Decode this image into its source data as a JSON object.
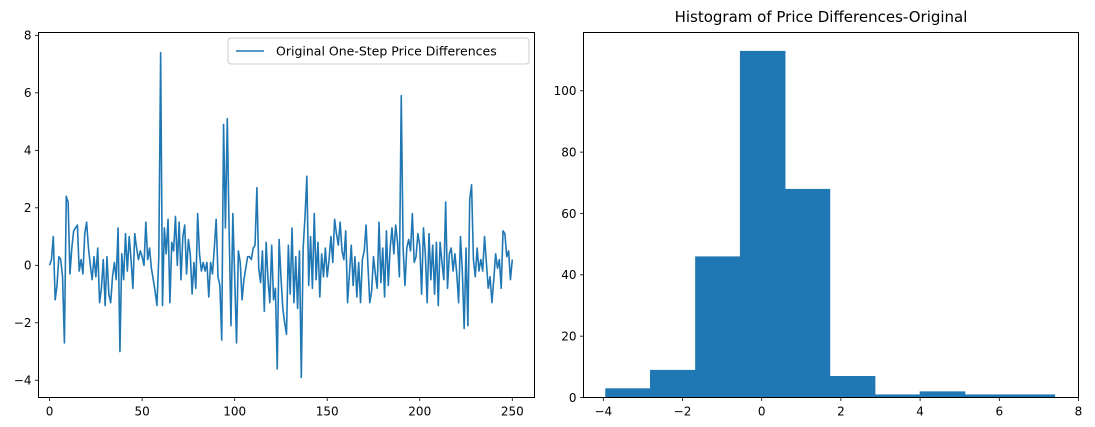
{
  "chart_data": [
    {
      "type": "line",
      "title": "",
      "xlabel": "",
      "ylabel": "",
      "xlim": [
        -6,
        262
      ],
      "ylim": [
        -4.6,
        8.1
      ],
      "xticks": [
        0,
        50,
        100,
        150,
        200,
        250
      ],
      "yticks": [
        -4,
        -2,
        0,
        2,
        4,
        6,
        8
      ],
      "legend": {
        "placement": "top-right"
      },
      "grid": false,
      "color": "#1f77b4",
      "series": [
        {
          "name": "Original One-Step Price Differences",
          "points": [
            [
              0,
              0
            ],
            [
              1,
              0.2
            ],
            [
              2,
              1.0
            ],
            [
              3,
              -1.2
            ],
            [
              4,
              -0.7
            ],
            [
              5,
              0.3
            ],
            [
              6,
              0.2
            ],
            [
              7,
              -0.4
            ],
            [
              8,
              -2.7
            ],
            [
              9,
              2.4
            ],
            [
              10,
              2.2
            ],
            [
              11,
              -0.3
            ],
            [
              12,
              0.6
            ],
            [
              13,
              1.2
            ],
            [
              14,
              1.3
            ],
            [
              15,
              1.4
            ],
            [
              16,
              -0.2
            ],
            [
              17,
              0.2
            ],
            [
              18,
              -0.3
            ],
            [
              19,
              1.1
            ],
            [
              20,
              1.5
            ],
            [
              21,
              0.6
            ],
            [
              22,
              0.0
            ],
            [
              23,
              -0.5
            ],
            [
              24,
              0.3
            ],
            [
              25,
              -0.4
            ],
            [
              26,
              0.6
            ],
            [
              27,
              -1.3
            ],
            [
              28,
              -0.8
            ],
            [
              29,
              0.2
            ],
            [
              30,
              -1.4
            ],
            [
              31,
              0.3
            ],
            [
              32,
              -1.0
            ],
            [
              33,
              -1.3
            ],
            [
              34,
              -0.4
            ],
            [
              35,
              0.1
            ],
            [
              36,
              -0.5
            ],
            [
              37,
              1.3
            ],
            [
              38,
              -3.0
            ],
            [
              39,
              0.4
            ],
            [
              40,
              -0.5
            ],
            [
              41,
              1.1
            ],
            [
              42,
              -0.2
            ],
            [
              43,
              1.0
            ],
            [
              44,
              0.2
            ],
            [
              45,
              -0.8
            ],
            [
              46,
              1.1
            ],
            [
              47,
              0.6
            ],
            [
              48,
              0.2
            ],
            [
              49,
              0.5
            ],
            [
              50,
              0.3
            ],
            [
              51,
              0.0
            ],
            [
              52,
              1.5
            ],
            [
              53,
              0.2
            ],
            [
              54,
              0.6
            ],
            [
              55,
              -0.1
            ],
            [
              56,
              -0.5
            ],
            [
              57,
              -0.9
            ],
            [
              58,
              -1.4
            ],
            [
              59,
              0.3
            ],
            [
              60,
              7.4
            ],
            [
              61,
              -1.4
            ],
            [
              62,
              1.3
            ],
            [
              63,
              0.4
            ],
            [
              64,
              1.6
            ],
            [
              65,
              -1.3
            ],
            [
              66,
              0.8
            ],
            [
              67,
              0.5
            ],
            [
              68,
              1.7
            ],
            [
              69,
              0.0
            ],
            [
              70,
              1.5
            ],
            [
              71,
              -0.5
            ],
            [
              72,
              1.0
            ],
            [
              73,
              1.4
            ],
            [
              74,
              -0.3
            ],
            [
              75,
              0.9
            ],
            [
              76,
              0.4
            ],
            [
              77,
              -1.0
            ],
            [
              78,
              0.1
            ],
            [
              79,
              -0.8
            ],
            [
              80,
              1.8
            ],
            [
              81,
              0.4
            ],
            [
              82,
              -0.2
            ],
            [
              83,
              0.1
            ],
            [
              84,
              -0.2
            ],
            [
              85,
              0.1
            ],
            [
              86,
              -1.1
            ],
            [
              87,
              0.1
            ],
            [
              88,
              -0.3
            ],
            [
              89,
              0.6
            ],
            [
              90,
              1.6
            ],
            [
              91,
              -0.4
            ],
            [
              92,
              -0.7
            ],
            [
              93,
              -2.6
            ],
            [
              94,
              4.9
            ],
            [
              95,
              1.3
            ],
            [
              96,
              5.1
            ],
            [
              97,
              1.2
            ],
            [
              98,
              -2.1
            ],
            [
              99,
              1.8
            ],
            [
              100,
              -0.4
            ],
            [
              101,
              -2.7
            ],
            [
              102,
              0.5
            ],
            [
              103,
              0.1
            ],
            [
              104,
              -1.2
            ],
            [
              105,
              -0.5
            ],
            [
              106,
              -0.1
            ],
            [
              107,
              0.3
            ],
            [
              108,
              0.3
            ],
            [
              109,
              0.2
            ],
            [
              110,
              0.6
            ],
            [
              111,
              0.7
            ],
            [
              112,
              2.7
            ],
            [
              113,
              -0.1
            ],
            [
              114,
              -0.6
            ],
            [
              115,
              0.5
            ],
            [
              116,
              -1.6
            ],
            [
              117,
              0.8
            ],
            [
              118,
              -0.5
            ],
            [
              119,
              -1.3
            ],
            [
              120,
              0.7
            ],
            [
              121,
              -1.2
            ],
            [
              122,
              -0.8
            ],
            [
              123,
              -3.6
            ],
            [
              124,
              0.9
            ],
            [
              125,
              -0.4
            ],
            [
              126,
              -1.5
            ],
            [
              127,
              -2.0
            ],
            [
              128,
              -2.4
            ],
            [
              129,
              0.7
            ],
            [
              130,
              -1.0
            ],
            [
              131,
              1.3
            ],
            [
              132,
              -1.3
            ],
            [
              133,
              0.3
            ],
            [
              134,
              -1.5
            ],
            [
              135,
              0.5
            ],
            [
              136,
              -3.9
            ],
            [
              137,
              0.6
            ],
            [
              138,
              1.7
            ],
            [
              139,
              3.1
            ],
            [
              140,
              -0.7
            ],
            [
              141,
              1.0
            ],
            [
              142,
              -0.8
            ],
            [
              143,
              1.8
            ],
            [
              144,
              -0.5
            ],
            [
              145,
              0.8
            ],
            [
              146,
              -1.1
            ],
            [
              147,
              0.4
            ],
            [
              148,
              -0.4
            ],
            [
              149,
              0.6
            ],
            [
              150,
              -0.4
            ],
            [
              151,
              0.2
            ],
            [
              152,
              1.0
            ],
            [
              153,
              0.1
            ],
            [
              154,
              1.6
            ],
            [
              155,
              1.1
            ],
            [
              156,
              0.7
            ],
            [
              157,
              1.5
            ],
            [
              158,
              0.5
            ],
            [
              159,
              0.2
            ],
            [
              160,
              1.2
            ],
            [
              161,
              -1.3
            ],
            [
              162,
              -0.3
            ],
            [
              163,
              0.7
            ],
            [
              164,
              -0.7
            ],
            [
              165,
              0.3
            ],
            [
              166,
              -1.1
            ],
            [
              167,
              0.1
            ],
            [
              168,
              -1.3
            ],
            [
              169,
              0.2
            ],
            [
              170,
              0.5
            ],
            [
              171,
              1.4
            ],
            [
              172,
              0.0
            ],
            [
              173,
              -1.3
            ],
            [
              174,
              -0.9
            ],
            [
              175,
              0.3
            ],
            [
              176,
              -0.3
            ],
            [
              177,
              -0.8
            ],
            [
              178,
              1.5
            ],
            [
              179,
              -0.6
            ],
            [
              180,
              0.6
            ],
            [
              181,
              -1.1
            ],
            [
              182,
              1.2
            ],
            [
              183,
              -0.7
            ],
            [
              184,
              0.6
            ],
            [
              185,
              1.3
            ],
            [
              186,
              0.4
            ],
            [
              187,
              1.4
            ],
            [
              188,
              0.8
            ],
            [
              189,
              -0.4
            ],
            [
              190,
              5.9
            ],
            [
              191,
              0.6
            ],
            [
              192,
              -0.7
            ],
            [
              193,
              0.6
            ],
            [
              194,
              0.9
            ],
            [
              195,
              0.5
            ],
            [
              196,
              1.8
            ],
            [
              197,
              0.1
            ],
            [
              198,
              0.3
            ],
            [
              199,
              1.1
            ],
            [
              200,
              0.7
            ],
            [
              201,
              -1.0
            ],
            [
              202,
              1.3
            ],
            [
              203,
              0.4
            ],
            [
              204,
              -1.3
            ],
            [
              205,
              1.1
            ],
            [
              206,
              -0.5
            ],
            [
              207,
              0.7
            ],
            [
              208,
              -1.0
            ],
            [
              209,
              0.8
            ],
            [
              210,
              -1.4
            ],
            [
              211,
              0.8
            ],
            [
              212,
              0.1
            ],
            [
              213,
              -0.5
            ],
            [
              214,
              2.2
            ],
            [
              215,
              -0.8
            ],
            [
              216,
              0.4
            ],
            [
              217,
              0.6
            ],
            [
              218,
              -0.2
            ],
            [
              219,
              0.4
            ],
            [
              220,
              -0.3
            ],
            [
              221,
              -1.3
            ],
            [
              222,
              1.0
            ],
            [
              223,
              -0.2
            ],
            [
              224,
              -2.2
            ],
            [
              225,
              0.6
            ],
            [
              226,
              -2.1
            ],
            [
              227,
              2.3
            ],
            [
              228,
              2.8
            ],
            [
              229,
              0.2
            ],
            [
              230,
              -0.4
            ],
            [
              231,
              0.6
            ],
            [
              232,
              -0.2
            ],
            [
              233,
              0.2
            ],
            [
              234,
              -0.2
            ],
            [
              235,
              1.0
            ],
            [
              236,
              0.1
            ],
            [
              237,
              -0.8
            ],
            [
              238,
              -0.4
            ],
            [
              239,
              -1.3
            ],
            [
              240,
              -0.5
            ],
            [
              241,
              0.4
            ],
            [
              242,
              -0.1
            ],
            [
              243,
              0.2
            ],
            [
              244,
              -0.8
            ],
            [
              245,
              1.2
            ],
            [
              246,
              1.1
            ],
            [
              247,
              0.3
            ],
            [
              248,
              0.5
            ],
            [
              249,
              -0.5
            ],
            [
              250,
              0.2
            ]
          ]
        }
      ]
    },
    {
      "type": "histogram",
      "title": "Histogram of Price Differences-Original",
      "xlabel": "",
      "ylabel": "",
      "xlim": [
        -4.5,
        8.0
      ],
      "ylim": [
        0,
        119
      ],
      "xticks": [
        -4,
        -2,
        0,
        2,
        4,
        6,
        8
      ],
      "yticks": [
        0,
        20,
        40,
        60,
        80,
        100
      ],
      "grid": false,
      "color": "#1f77b4",
      "bins": [
        {
          "start": -3.95,
          "end": -2.82,
          "count": 3
        },
        {
          "start": -2.82,
          "end": -1.68,
          "count": 9
        },
        {
          "start": -1.68,
          "end": -0.55,
          "count": 46
        },
        {
          "start": -0.55,
          "end": 0.59,
          "count": 113
        },
        {
          "start": 0.59,
          "end": 1.72,
          "count": 68
        },
        {
          "start": 1.72,
          "end": 2.86,
          "count": 7
        },
        {
          "start": 2.86,
          "end": 3.99,
          "count": 1
        },
        {
          "start": 3.99,
          "end": 5.13,
          "count": 2
        },
        {
          "start": 5.13,
          "end": 6.26,
          "count": 1
        },
        {
          "start": 6.26,
          "end": 7.4,
          "count": 1
        }
      ]
    }
  ]
}
